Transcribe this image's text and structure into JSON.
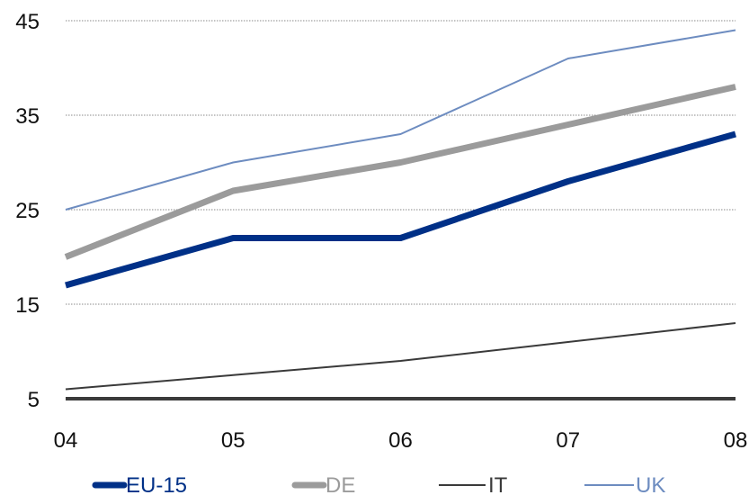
{
  "chart_data": {
    "type": "line",
    "title": "",
    "xlabel": "",
    "ylabel": "",
    "x": [
      "04",
      "05",
      "06",
      "07",
      "08"
    ],
    "y_ticks": [
      "45",
      "35",
      "25",
      "15",
      "5"
    ],
    "ylim": [
      5,
      45
    ],
    "grid": "horizontal dotted",
    "legend_position": "bottom",
    "baseline_color": "#3a3a3a",
    "series": [
      {
        "name": "EU-15",
        "values": [
          17,
          22,
          22,
          28,
          33
        ],
        "color": "#003087",
        "style": "thick"
      },
      {
        "name": "DE",
        "values": [
          20,
          27,
          30,
          34,
          38
        ],
        "color": "#9b9b9b",
        "style": "thick"
      },
      {
        "name": "IT",
        "values": [
          6,
          7.5,
          9,
          11,
          13
        ],
        "color": "#3a3a3a",
        "style": "thin"
      },
      {
        "name": "UK",
        "values": [
          25,
          30,
          33,
          41,
          44
        ],
        "color": "#6d8cc0",
        "style": "thin"
      }
    ]
  }
}
